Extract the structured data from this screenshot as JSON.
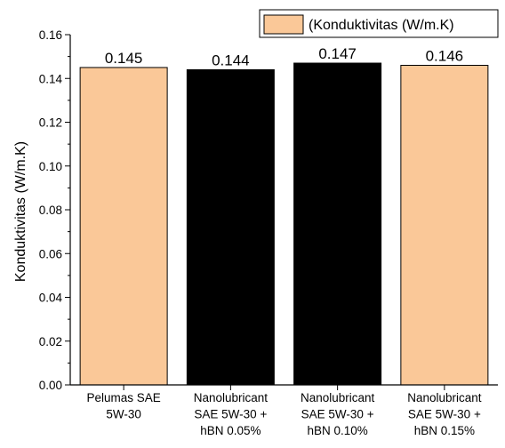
{
  "chart_data": {
    "type": "bar",
    "title": "",
    "xlabel": "",
    "ylabel": "Konduktivitas (W/m.K)",
    "ylim": [
      0,
      0.16
    ],
    "yticks": [
      "0.00",
      "0.02",
      "0.04",
      "0.06",
      "0.08",
      "0.10",
      "0.12",
      "0.14",
      "0.16"
    ],
    "categories": [
      [
        "Pelumas SAE",
        "5W-30"
      ],
      [
        "Nanolubricant",
        "SAE 5W-30 +",
        "hBN 0.05%"
      ],
      [
        "Nanolubricant",
        "SAE 5W-30 +",
        "hBN 0.10%"
      ],
      [
        "Nanolubricant",
        "SAE 5W-30 +",
        "hBN 0.15%"
      ]
    ],
    "series": [
      {
        "name": "(Konduktivitas  (W/m.K)",
        "values": [
          0.145,
          0.144,
          0.147,
          0.146
        ],
        "data_labels": [
          "0.145",
          "0.144",
          "0.147",
          "0.146"
        ],
        "colors": [
          "#FAC898",
          "#000000",
          "#000000",
          "#FAC898"
        ]
      }
    ],
    "legend": {
      "position": "top-right",
      "label": "(Konduktivitas  (W/m.K)",
      "color": "#FAC898"
    },
    "grid": false
  }
}
